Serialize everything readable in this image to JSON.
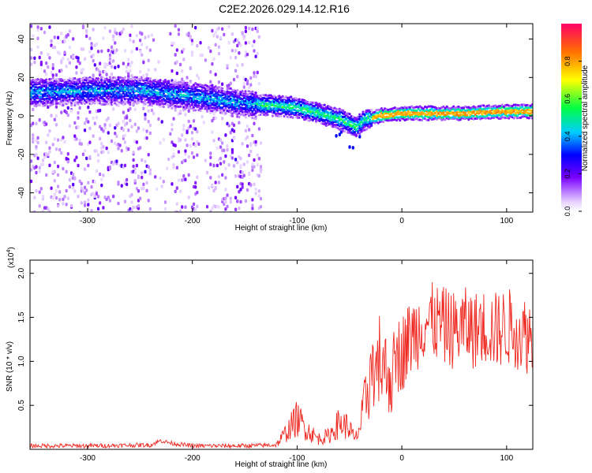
{
  "title": "C2E2.2026.029.14.12.R16",
  "chart_data": [
    {
      "type": "heatmap",
      "xlabel": "Height of straight line (km)",
      "ylabel": "Frequency (Hz)",
      "xlim": [
        -355,
        125
      ],
      "ylim": [
        -50,
        48
      ],
      "xticks": [
        -300,
        -200,
        -100,
        0,
        100
      ],
      "yticks": [
        -40,
        -20,
        0,
        20,
        40
      ],
      "colorbar": {
        "label": "Normalized spectral amplitude",
        "range": [
          0,
          1
        ],
        "ticks": [
          0.0,
          0.2,
          0.4,
          0.6,
          0.8
        ]
      },
      "ridge": {
        "x": [
          -350,
          -300,
          -250,
          -200,
          -150,
          -120,
          -100,
          -80,
          -60,
          -45,
          -35,
          -20,
          0,
          50,
          100,
          125
        ],
        "frequency": [
          13,
          14,
          14,
          11,
          7,
          6,
          5,
          2,
          -1,
          -5,
          -1,
          1,
          2,
          2,
          3,
          3
        ]
      }
    },
    {
      "type": "line",
      "xlabel": "Height of straight line (km)",
      "ylabel": "SNR (10 * v/v)",
      "y_multiplier_label": "(x10",
      "y_multiplier_exponent": "4",
      "y_multiplier_close": ")",
      "xlim": [
        -355,
        125
      ],
      "ylim": [
        0,
        2.15
      ],
      "xticks": [
        -300,
        -200,
        -100,
        0,
        100
      ],
      "yticks": [
        0.5,
        1.0,
        1.5,
        2.0
      ],
      "series": [
        {
          "name": "SNR",
          "color": "#ee2a22",
          "x": [
            -355,
            -300,
            -240,
            -230,
            -220,
            -200,
            -150,
            -120,
            -110,
            -100,
            -90,
            -80,
            -70,
            -60,
            -50,
            -45,
            -40,
            -35,
            -30,
            -25,
            -20,
            -15,
            -10,
            -5,
            0,
            5,
            10,
            15,
            20,
            30,
            40,
            50,
            60,
            70,
            80,
            90,
            100,
            110,
            120,
            125
          ],
          "values": [
            0.04,
            0.04,
            0.05,
            0.1,
            0.07,
            0.04,
            0.04,
            0.05,
            0.2,
            0.35,
            0.22,
            0.12,
            0.15,
            0.3,
            0.25,
            0.1,
            0.25,
            0.55,
            0.85,
            0.7,
            0.95,
            0.9,
            0.8,
            1.05,
            1.1,
            1.2,
            1.3,
            1.35,
            1.45,
            1.45,
            1.4,
            1.35,
            1.4,
            1.35,
            1.4,
            1.35,
            1.4,
            1.35,
            1.3,
            1.3
          ]
        }
      ]
    }
  ]
}
